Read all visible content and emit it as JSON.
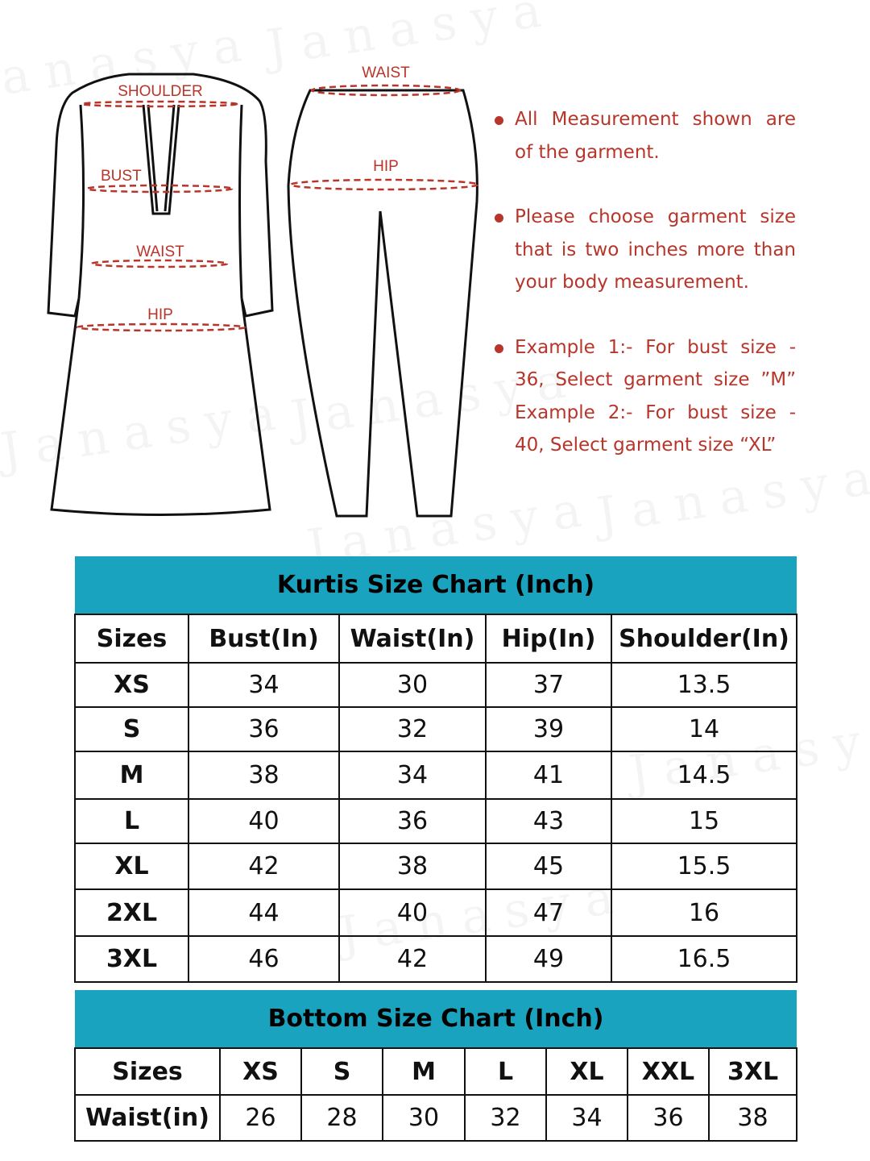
{
  "watermark": "Janasya",
  "colors": {
    "accent": "#1aa3bf",
    "note_text": "#b8352b",
    "measure_line": "#b8352b"
  },
  "diagram": {
    "kurti_labels": [
      "SHOULDER",
      "BUST",
      "WAIST",
      "HIP"
    ],
    "pant_labels": [
      "WAIST",
      "HIP"
    ]
  },
  "notes": [
    "All Measurement shown are of the garment.",
    "Please choose garment size that is two inches more than your body measurement.",
    "Example 1:- For bust size - 36, Select garment size ”M” Example 2:- For bust size - 40, Select garment size  “XL”"
  ],
  "kurti_chart": {
    "title": "Kurtis Size Chart (Inch)",
    "headers": [
      "Sizes",
      "Bust(In)",
      "Waist(In)",
      "Hip(In)",
      "Shoulder(In)"
    ],
    "rows": [
      [
        "XS",
        "34",
        "30",
        "37",
        "13.5"
      ],
      [
        "S",
        "36",
        "32",
        "39",
        "14"
      ],
      [
        "M",
        "38",
        "34",
        "41",
        "14.5"
      ],
      [
        "L",
        "40",
        "36",
        "43",
        "15"
      ],
      [
        "XL",
        "42",
        "38",
        "45",
        "15.5"
      ],
      [
        "2XL",
        "44",
        "40",
        "47",
        "16"
      ],
      [
        "3XL",
        "46",
        "42",
        "49",
        "16.5"
      ]
    ]
  },
  "bottom_chart": {
    "title": "Bottom Size Chart (Inch)",
    "headers": [
      "Sizes",
      "XS",
      "S",
      "M",
      "L",
      "XL",
      "XXL",
      "3XL"
    ],
    "row_label": "Waist(in)",
    "values": [
      "26",
      "28",
      "30",
      "32",
      "34",
      "36",
      "38"
    ]
  }
}
